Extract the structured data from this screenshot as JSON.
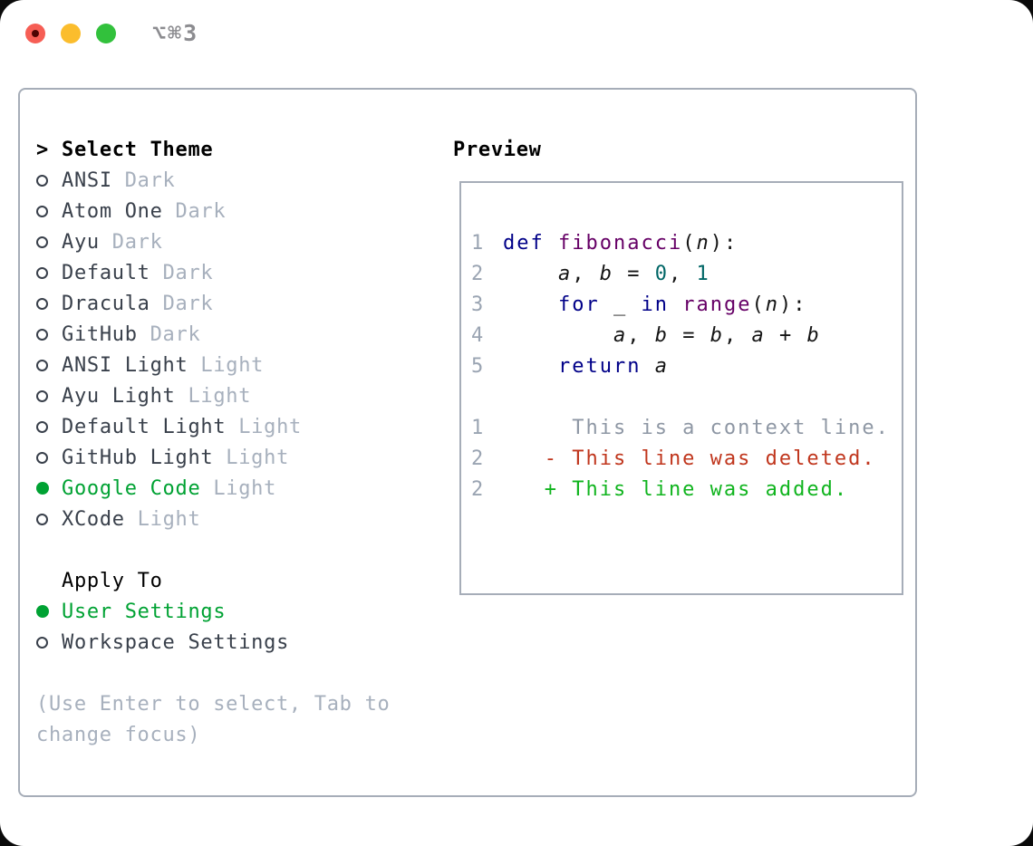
{
  "window": {
    "title": "⌥⌘3"
  },
  "theme_panel": {
    "header_prefix": ">",
    "header": "Select Theme",
    "themes": [
      {
        "name": "ANSI",
        "variant": "Dark",
        "selected": false
      },
      {
        "name": "Atom One",
        "variant": "Dark",
        "selected": false
      },
      {
        "name": "Ayu",
        "variant": "Dark",
        "selected": false
      },
      {
        "name": "Default",
        "variant": "Dark",
        "selected": false
      },
      {
        "name": "Dracula",
        "variant": "Dark",
        "selected": false
      },
      {
        "name": "GitHub",
        "variant": "Dark",
        "selected": false
      },
      {
        "name": "ANSI Light",
        "variant": "Light",
        "selected": false
      },
      {
        "name": "Ayu Light",
        "variant": "Light",
        "selected": false
      },
      {
        "name": "Default Light",
        "variant": "Light",
        "selected": false
      },
      {
        "name": "GitHub Light",
        "variant": "Light",
        "selected": false
      },
      {
        "name": "Google Code",
        "variant": "Light",
        "selected": true
      },
      {
        "name": "XCode",
        "variant": "Light",
        "selected": false
      }
    ],
    "apply_to": {
      "header": "Apply To",
      "options": [
        {
          "label": "User Settings",
          "selected": true
        },
        {
          "label": "Workspace Settings",
          "selected": false
        }
      ]
    },
    "help_lines": [
      "(Use Enter to select, Tab to",
      "change focus)"
    ]
  },
  "preview": {
    "header": "Preview",
    "code_lines": [
      {
        "num": "1",
        "tokens": [
          [
            "def",
            "kw"
          ],
          [
            " ",
            "pln"
          ],
          [
            "fibonacci",
            "fn"
          ],
          [
            "(",
            "pln"
          ],
          [
            "n",
            "var"
          ],
          [
            "):",
            "pln"
          ]
        ]
      },
      {
        "num": "2",
        "tokens": [
          [
            "    ",
            "pln"
          ],
          [
            "a",
            "var"
          ],
          [
            ", ",
            "pln"
          ],
          [
            "b",
            "var"
          ],
          [
            " = ",
            "pln"
          ],
          [
            "0",
            "lit"
          ],
          [
            ", ",
            "pln"
          ],
          [
            "1",
            "lit"
          ]
        ]
      },
      {
        "num": "3",
        "tokens": [
          [
            "    ",
            "pln"
          ],
          [
            "for",
            "kw"
          ],
          [
            " ",
            "pln"
          ],
          [
            "_",
            "var"
          ],
          [
            " ",
            "pln"
          ],
          [
            "in",
            "kw"
          ],
          [
            " ",
            "pln"
          ],
          [
            "range",
            "fn"
          ],
          [
            "(",
            "pln"
          ],
          [
            "n",
            "var"
          ],
          [
            "):",
            "pln"
          ]
        ]
      },
      {
        "num": "4",
        "tokens": [
          [
            "        ",
            "pln"
          ],
          [
            "a",
            "var"
          ],
          [
            ", ",
            "pln"
          ],
          [
            "b",
            "var"
          ],
          [
            " = ",
            "pln"
          ],
          [
            "b",
            "var"
          ],
          [
            ", ",
            "pln"
          ],
          [
            "a",
            "var"
          ],
          [
            " + ",
            "pln"
          ],
          [
            "b",
            "var"
          ]
        ]
      },
      {
        "num": "5",
        "tokens": [
          [
            "    ",
            "pln"
          ],
          [
            "return",
            "kw"
          ],
          [
            " ",
            "pln"
          ],
          [
            "a",
            "var"
          ]
        ]
      }
    ],
    "diff_lines": [
      {
        "num": "1",
        "type": "context",
        "text": "     This is a context line."
      },
      {
        "num": "2",
        "type": "deleted",
        "text": "   - This line was deleted."
      },
      {
        "num": "2",
        "type": "added",
        "text": "   + This line was added."
      }
    ]
  },
  "colors": {
    "accent_green": "#00a233",
    "diff_added": "#10b41e",
    "diff_deleted": "#c0361d",
    "diff_context": "#8e97a4",
    "line_number": "#9aa4b2",
    "keyword": "#000088",
    "function_name": "#660066",
    "literal": "#006666",
    "plain_code": "#141414",
    "item_text": "#39404b",
    "muted_text": "#a7b0bd",
    "panel_border": "#a6adb8",
    "title_text": "#8c8c90",
    "light_close": "#f65e55",
    "light_minimize": "#fbbd2d",
    "light_zoom": "#32c13c"
  }
}
